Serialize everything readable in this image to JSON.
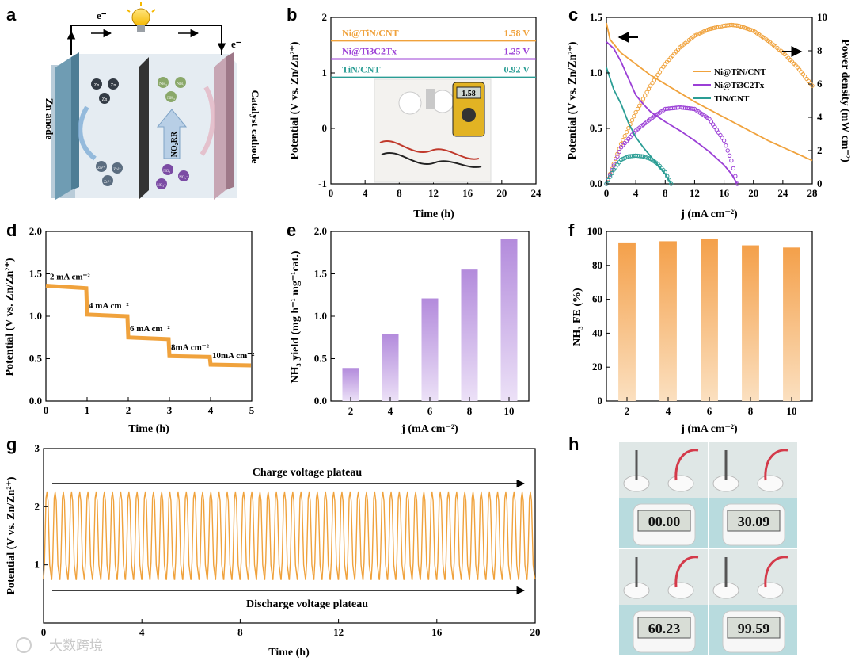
{
  "panel_labels": [
    "a",
    "b",
    "c",
    "d",
    "e",
    "f",
    "g",
    "h"
  ],
  "watermark": "大数跨境",
  "panel_a": {
    "anode_label": "Zn anode",
    "cathode_label": "Catalyst cathode",
    "electron": "e⁻",
    "reaction_label": "NO₂RR",
    "zn_atom": "Zn",
    "zn_ion": "Zn²⁺",
    "nh3": "NH₃",
    "no2": "NO₂⁻"
  },
  "colors": {
    "orange": "#f0a23c",
    "purple": "#9b3fd6",
    "teal": "#2a9d94",
    "bar_orange_top": "#f4a04a",
    "bar_orange_bottom": "#fbe0c0",
    "bar_purple_top": "#b38bdc",
    "bar_purple_bottom": "#ece1f7"
  },
  "chart_data": [
    {
      "id": "b",
      "type": "line",
      "xlabel": "Time (h)",
      "ylabel": "Potential (V vs. Zn/Zn²⁺)",
      "xlim": [
        0,
        24
      ],
      "ylim": [
        -1,
        2
      ],
      "xticks": [
        0,
        4,
        8,
        12,
        16,
        20,
        24
      ],
      "yticks": [
        -1,
        0,
        1,
        2
      ],
      "series": [
        {
          "name": "Ni@TiN/CNT",
          "value_label": "1.58 V",
          "y": 1.58,
          "color": "#f0a23c"
        },
        {
          "name": "Ni@Ti3C2Tx",
          "value_label": "1.25 V",
          "y": 1.25,
          "color": "#9b3fd6"
        },
        {
          "name": "TiN/CNT",
          "value_label": "0.92 V",
          "y": 0.92,
          "color": "#2a9d94"
        }
      ],
      "inset_reading": "1.58"
    },
    {
      "id": "c",
      "type": "line",
      "xlabel": "j (mA cm⁻²)",
      "ylabel": "Potential (V vs. Zn/Zn²⁺)",
      "y2label": "Power density (mW cm⁻²)",
      "xlim": [
        0,
        28
      ],
      "ylim": [
        0,
        1.5
      ],
      "y2lim": [
        0,
        10
      ],
      "xticks": [
        0,
        4,
        8,
        12,
        16,
        20,
        24,
        28
      ],
      "yticks": [
        0.0,
        0.5,
        1.0,
        1.5
      ],
      "y2ticks": [
        0,
        2,
        4,
        6,
        8,
        10
      ],
      "legend": "right",
      "series": [
        {
          "name": "Ni@TiN/CNT",
          "color": "#f0a23c",
          "polarization": [
            [
              0,
              1.45
            ],
            [
              0.5,
              1.3
            ],
            [
              2,
              1.18
            ],
            [
              4,
              1.08
            ],
            [
              6,
              0.98
            ],
            [
              8,
              0.9
            ],
            [
              10,
              0.82
            ],
            [
              12,
              0.74
            ],
            [
              14,
              0.67
            ],
            [
              16,
              0.6
            ],
            [
              18,
              0.53
            ],
            [
              20,
              0.46
            ],
            [
              22,
              0.39
            ],
            [
              24,
              0.33
            ],
            [
              26,
              0.27
            ],
            [
              28,
              0.21
            ]
          ],
          "power": [
            [
              0,
              0
            ],
            [
              2,
              2.4
            ],
            [
              4,
              4.3
            ],
            [
              6,
              5.9
            ],
            [
              8,
              7.2
            ],
            [
              10,
              8.2
            ],
            [
              12,
              8.9
            ],
            [
              14,
              9.3
            ],
            [
              16,
              9.5
            ],
            [
              17,
              9.55
            ],
            [
              18,
              9.5
            ],
            [
              20,
              9.2
            ],
            [
              22,
              8.6
            ],
            [
              24,
              7.9
            ],
            [
              26,
              7.0
            ],
            [
              28,
              5.9
            ]
          ]
        },
        {
          "name": "Ni@Ti3C2Tx",
          "color": "#9b3fd6",
          "polarization": [
            [
              0,
              1.28
            ],
            [
              1,
              1.22
            ],
            [
              2,
              1.1
            ],
            [
              3,
              0.95
            ],
            [
              4,
              0.8
            ],
            [
              5,
              0.72
            ],
            [
              6,
              0.65
            ],
            [
              8,
              0.56
            ],
            [
              10,
              0.48
            ],
            [
              12,
              0.39
            ],
            [
              14,
              0.29
            ],
            [
              16,
              0.17
            ],
            [
              17,
              0.09
            ],
            [
              17.8,
              0.0
            ]
          ],
          "power": [
            [
              0,
              0
            ],
            [
              2,
              2.2
            ],
            [
              4,
              3.2
            ],
            [
              6,
              3.9
            ],
            [
              8,
              4.5
            ],
            [
              10,
              4.6
            ],
            [
              12,
              4.5
            ],
            [
              14,
              3.9
            ],
            [
              16,
              2.6
            ],
            [
              17,
              1.4
            ],
            [
              17.8,
              0
            ]
          ]
        },
        {
          "name": "TiN/CNT",
          "color": "#2a9d94",
          "polarization": [
            [
              0,
              1.05
            ],
            [
              0.5,
              0.95
            ],
            [
              1,
              0.85
            ],
            [
              2,
              0.72
            ],
            [
              3,
              0.55
            ],
            [
              4,
              0.42
            ],
            [
              5,
              0.33
            ],
            [
              6,
              0.25
            ],
            [
              7,
              0.17
            ],
            [
              8,
              0.09
            ],
            [
              8.8,
              0.0
            ]
          ],
          "power": [
            [
              0,
              0
            ],
            [
              1,
              0.85
            ],
            [
              2,
              1.45
            ],
            [
              3,
              1.65
            ],
            [
              4,
              1.7
            ],
            [
              5,
              1.65
            ],
            [
              6,
              1.5
            ],
            [
              7,
              1.2
            ],
            [
              8,
              0.7
            ],
            [
              8.8,
              0
            ]
          ]
        }
      ]
    },
    {
      "id": "d",
      "type": "line",
      "xlabel": "Time (h)",
      "ylabel": "Potential (V vs. Zn/Zn²⁺)",
      "xlim": [
        0,
        5
      ],
      "ylim": [
        0,
        2.0
      ],
      "xticks": [
        0,
        1,
        2,
        3,
        4,
        5
      ],
      "yticks": [
        0.0,
        0.5,
        1.0,
        1.5,
        2.0
      ],
      "steps": [
        {
          "label": "2 mA cm⁻²",
          "t0": 0,
          "t1": 1,
          "v0": 1.36,
          "v1": 1.33
        },
        {
          "label": "4 mA cm⁻²",
          "t0": 1,
          "t1": 2,
          "v0": 1.02,
          "v1": 1.0
        },
        {
          "label": "6 mA cm⁻²",
          "t0": 2,
          "t1": 3,
          "v0": 0.75,
          "v1": 0.73
        },
        {
          "label": "8mA cm⁻²",
          "t0": 3,
          "t1": 4,
          "v0": 0.53,
          "v1": 0.52
        },
        {
          "label": "10mA cm⁻²",
          "t0": 4,
          "t1": 5,
          "v0": 0.43,
          "v1": 0.42
        }
      ]
    },
    {
      "id": "e",
      "type": "bar",
      "xlabel": "j (mA cm⁻²)",
      "ylabel": "NH₃ yield (mg h⁻¹ mg⁻¹cat.)",
      "categories": [
        "2",
        "4",
        "6",
        "8",
        "10"
      ],
      "values": [
        0.39,
        0.79,
        1.21,
        1.55,
        1.91
      ],
      "ylim": [
        0,
        2.0
      ],
      "yticks": [
        0.0,
        0.5,
        1.0,
        1.5,
        2.0
      ]
    },
    {
      "id": "f",
      "type": "bar",
      "xlabel": "j (mA cm⁻²)",
      "ylabel": "NH₃ FE (%)",
      "categories": [
        "2",
        "4",
        "6",
        "8",
        "10"
      ],
      "values": [
        93.5,
        94.2,
        95.8,
        91.8,
        90.5
      ],
      "ylim": [
        0,
        100
      ],
      "yticks": [
        0,
        20,
        40,
        60,
        80,
        100
      ]
    },
    {
      "id": "g",
      "type": "line",
      "xlabel": "Time (h)",
      "ylabel": "Potential (V vs. Zn/Zn²⁺)",
      "xlim": [
        0,
        20
      ],
      "ylim": [
        0,
        3
      ],
      "xticks": [
        0,
        4,
        8,
        12,
        16,
        20
      ],
      "yticks": [
        1,
        2,
        3
      ],
      "charge_label": "Charge voltage plateau",
      "discharge_label": "Discharge voltage plateau",
      "cycles": 60,
      "v_high": 2.25,
      "v_low": 0.75
    }
  ],
  "panel_h": {
    "timer_readings": [
      "00.00",
      "30.09",
      "60.23",
      "99.59"
    ]
  }
}
